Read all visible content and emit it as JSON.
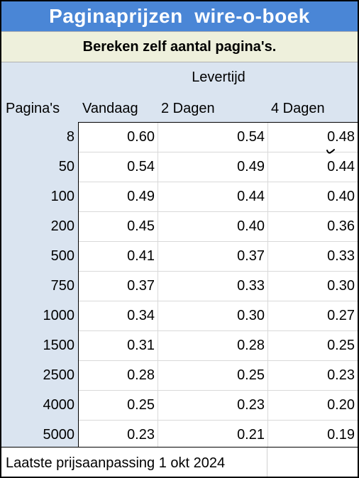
{
  "title": "Paginaprijzen  wire-o-boek",
  "subtitle": "Bereken zelf aantal pagina's.",
  "header": {
    "levertijd": "Levertijd",
    "pages_label": "Pagina's",
    "columns": [
      "Vandaag",
      "2 Dagen",
      "4 Dagen"
    ]
  },
  "rows": [
    {
      "pages": "8",
      "values": [
        "0.60",
        "0.54",
        "0.48"
      ]
    },
    {
      "pages": "50",
      "values": [
        "0.54",
        "0.49",
        "0.44"
      ]
    },
    {
      "pages": "100",
      "values": [
        "0.49",
        "0.44",
        "0.40"
      ]
    },
    {
      "pages": "200",
      "values": [
        "0.45",
        "0.40",
        "0.36"
      ]
    },
    {
      "pages": "500",
      "values": [
        "0.41",
        "0.37",
        "0.33"
      ]
    },
    {
      "pages": "750",
      "values": [
        "0.37",
        "0.33",
        "0.30"
      ]
    },
    {
      "pages": "1000",
      "values": [
        "0.34",
        "0.30",
        "0.27"
      ]
    },
    {
      "pages": "1500",
      "values": [
        "0.31",
        "0.28",
        "0.25"
      ]
    },
    {
      "pages": "2500",
      "values": [
        "0.28",
        "0.25",
        "0.23"
      ]
    },
    {
      "pages": "4000",
      "values": [
        "0.25",
        "0.23",
        "0.20"
      ]
    },
    {
      "pages": "5000",
      "values": [
        "0.23",
        "0.21",
        "0.19"
      ]
    }
  ],
  "footer": "Laatste prijsaanpassing 1 okt 2024",
  "colors": {
    "title_bg": "#4a86d6",
    "subtitle_bg": "#eef0dc",
    "header_bg": "#dae4f0"
  }
}
